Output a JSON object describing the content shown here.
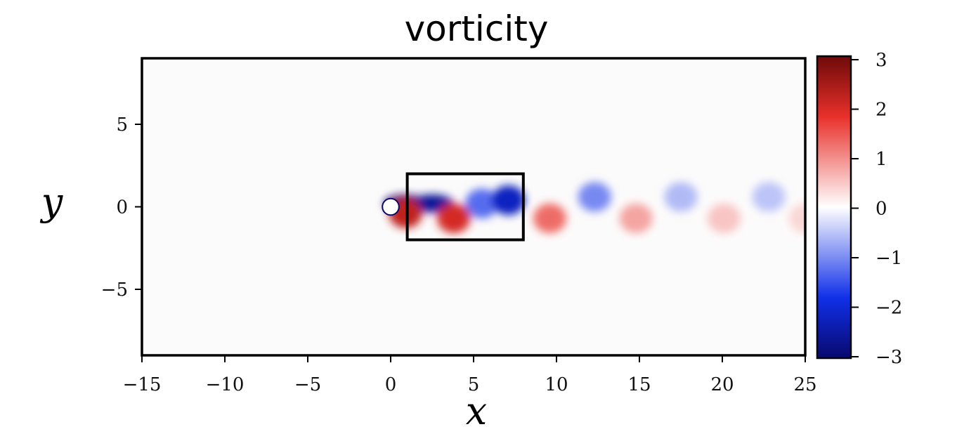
{
  "chart_data": {
    "type": "heatmap",
    "title": "vorticity",
    "xlabel": "x",
    "ylabel": "y",
    "xlim": [
      -15,
      25
    ],
    "ylim": [
      -9,
      9
    ],
    "x_ticks": [
      -15,
      -10,
      -5,
      0,
      5,
      10,
      15,
      20,
      25
    ],
    "x_tick_labels": [
      "−15",
      "−10",
      "−5",
      "0",
      "5",
      "10",
      "15",
      "20",
      "25"
    ],
    "y_ticks": [
      5,
      0,
      -5
    ],
    "y_tick_labels": [
      "5",
      "0",
      "−5"
    ],
    "colorbar": {
      "range": [
        -3,
        3
      ],
      "ticks": [
        3,
        2,
        1,
        0,
        -1,
        -2,
        -3
      ],
      "tick_labels": [
        "3",
        "2",
        "1",
        "0",
        "−1",
        "−2",
        "−3"
      ],
      "colormap": [
        "#08086e",
        "#1030e8",
        "#ffffff",
        "#e8302a",
        "#6e0a0a"
      ]
    },
    "obstacle": {
      "shape": "circle",
      "center": [
        0,
        0
      ],
      "diameter": 1
    },
    "highlight_box": {
      "x0": 1,
      "x1": 8,
      "y0": -2,
      "y1": 2
    },
    "vortices": [
      {
        "x": 0.9,
        "y": 0.2,
        "sign": -1,
        "strength": 3.0
      },
      {
        "x": 2.5,
        "y": 0.2,
        "sign": -1,
        "strength": 2.6
      },
      {
        "x": 0.9,
        "y": -0.4,
        "sign": 1,
        "strength": 2.2
      },
      {
        "x": 3.8,
        "y": -0.7,
        "sign": 1,
        "strength": 2.0
      },
      {
        "x": 5.5,
        "y": 0.2,
        "sign": -1,
        "strength": 1.5
      },
      {
        "x": 7.1,
        "y": 0.4,
        "sign": -1,
        "strength": 2.2
      },
      {
        "x": 9.6,
        "y": -0.7,
        "sign": 1,
        "strength": 1.5
      },
      {
        "x": 12.3,
        "y": 0.6,
        "sign": -1,
        "strength": 1.3
      },
      {
        "x": 14.8,
        "y": -0.7,
        "sign": 1,
        "strength": 1.1
      },
      {
        "x": 17.5,
        "y": 0.6,
        "sign": -1,
        "strength": 0.9
      },
      {
        "x": 20.1,
        "y": -0.7,
        "sign": 1,
        "strength": 0.8
      },
      {
        "x": 22.8,
        "y": 0.6,
        "sign": -1,
        "strength": 0.8
      },
      {
        "x": 25.0,
        "y": -0.7,
        "sign": 1,
        "strength": 0.6
      }
    ]
  }
}
